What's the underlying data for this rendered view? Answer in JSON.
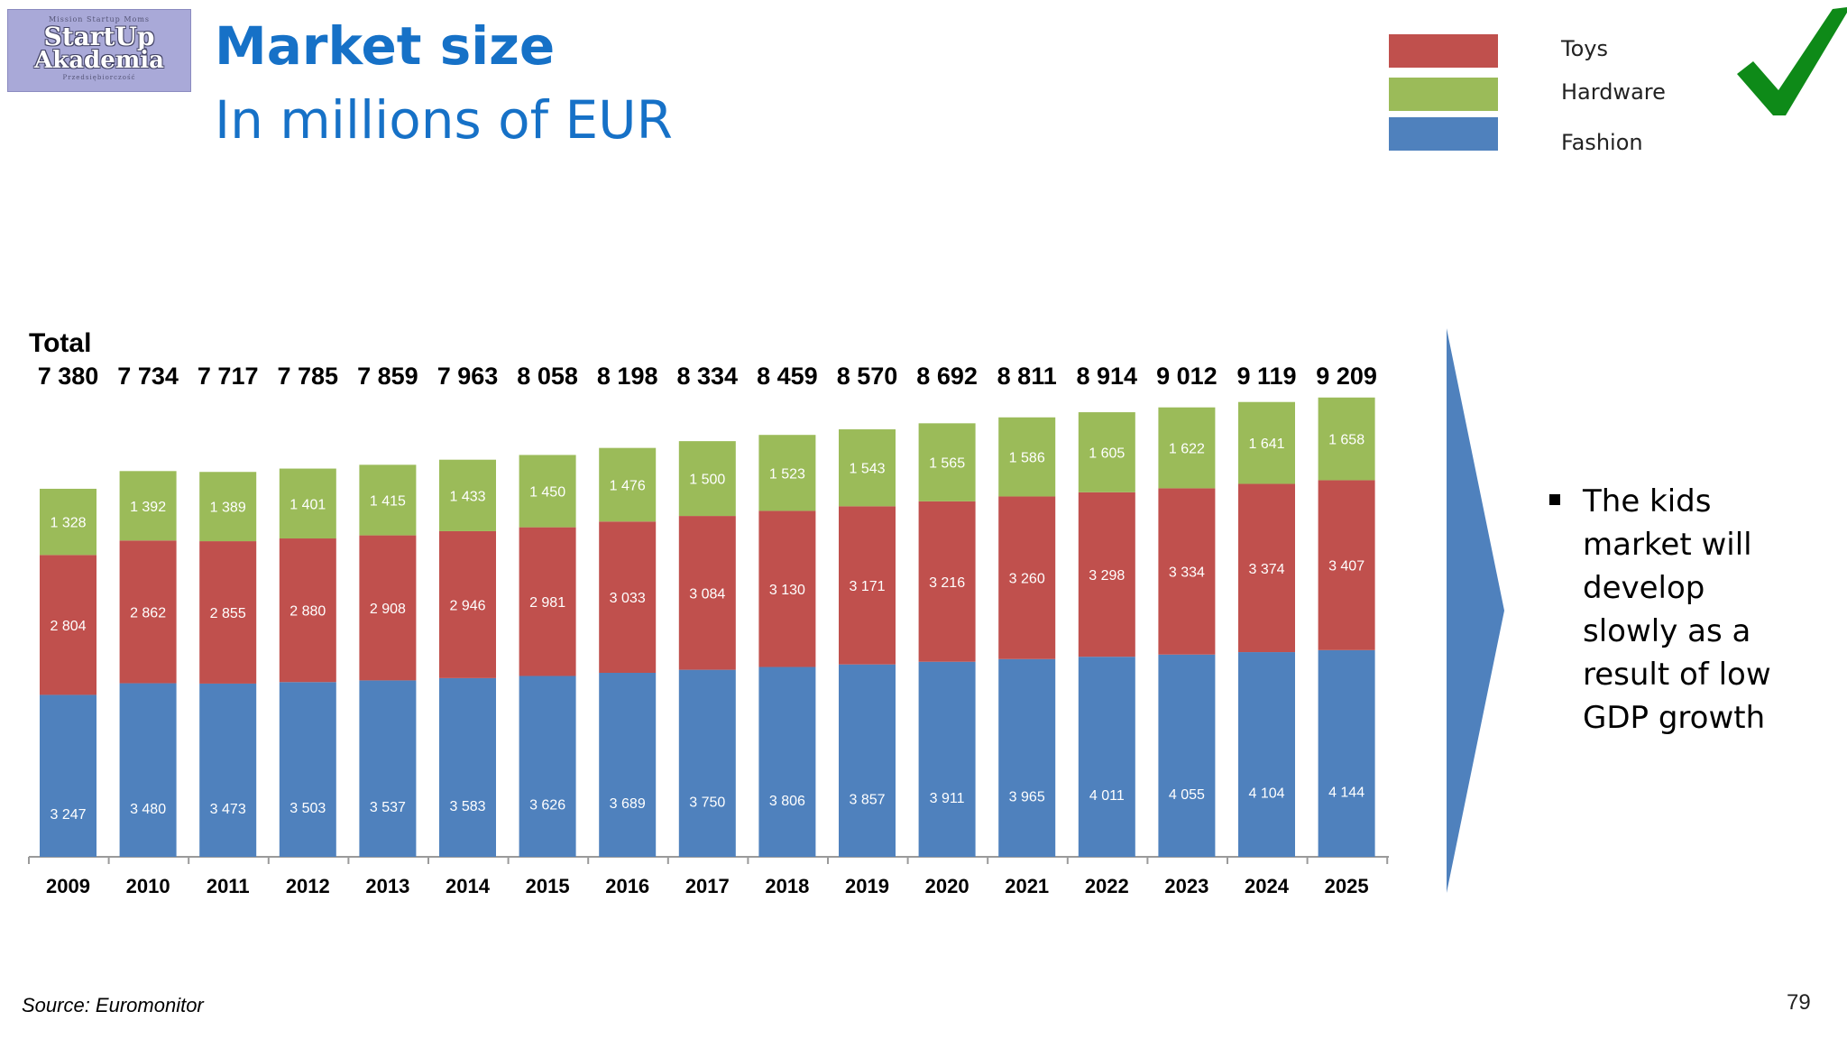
{
  "logo": {
    "top_text": "Mission Startup Moms",
    "line1": "StartUp",
    "line2": "Akademia",
    "bottom_text": "Przedsiębiorczość"
  },
  "header": {
    "title": "Market size",
    "subtitle": "In millions of EUR"
  },
  "legend": [
    {
      "label": "Toys",
      "color": "#c0504d"
    },
    {
      "label": "Hardware",
      "color": "#9bbb59"
    },
    {
      "label": "Fashion",
      "color": "#4f81bd"
    }
  ],
  "checkmark_icon": "check-icon",
  "chart_data": {
    "type": "bar",
    "stacked": true,
    "categories": [
      "2009",
      "2010",
      "2011",
      "2012",
      "2013",
      "2014",
      "2015",
      "2016",
      "2017",
      "2018",
      "2019",
      "2020",
      "2021",
      "2022",
      "2023",
      "2024",
      "2025"
    ],
    "series": [
      {
        "name": "Fashion",
        "color": "#4f81bd",
        "values": [
          3247,
          3480,
          3473,
          3503,
          3537,
          3583,
          3626,
          3689,
          3750,
          3806,
          3857,
          3911,
          3965,
          4011,
          4055,
          4104,
          4144
        ]
      },
      {
        "name": "Toys",
        "color": "#c0504d",
        "values": [
          2804,
          2862,
          2855,
          2880,
          2908,
          2946,
          2981,
          3033,
          3084,
          3130,
          3171,
          3216,
          3260,
          3298,
          3334,
          3374,
          3407
        ]
      },
      {
        "name": "Hardware",
        "color": "#9bbb59",
        "values": [
          1328,
          1392,
          1389,
          1401,
          1415,
          1433,
          1450,
          1476,
          1500,
          1523,
          1543,
          1565,
          1586,
          1605,
          1622,
          1641,
          1658
        ]
      }
    ],
    "total_heading": "Total",
    "totals_labels": [
      "7 380",
      "7 734",
      "7 717",
      "7 785",
      "7 859",
      "7 963",
      "8 058",
      "8 198",
      "8 334",
      "8 459",
      "8 570",
      "8 692",
      "8 811",
      "8 914",
      "9 012",
      "9 119",
      "9 209"
    ],
    "value_labels": {
      "Fashion": [
        "3 247",
        "3 480",
        "3 473",
        "3 503",
        "3 537",
        "3 583",
        "3 626",
        "3 689",
        "3 750",
        "3 806",
        "3 857",
        "3 911",
        "3 965",
        "4 011",
        "4 055",
        "4 104",
        "4 144"
      ],
      "Toys": [
        "2 804",
        "2 862",
        "2 855",
        "2 880",
        "2 908",
        "2 946",
        "2 981",
        "3 033",
        "3 084",
        "3 130",
        "3 171",
        "3 216",
        "3 260",
        "3 298",
        "3 334",
        "3 374",
        "3 407"
      ],
      "Hardware": [
        "1 328",
        "1 392",
        "1 389",
        "1 401",
        "1 415",
        "1 433",
        "1 450",
        "1 476",
        "1 500",
        "1 523",
        "1 543",
        "1 565",
        "1 586",
        "1 605",
        "1 622",
        "1 641",
        "1 658"
      ]
    },
    "ylim": [
      0,
      10000
    ],
    "grid": false
  },
  "bullet": {
    "text": "The kids market will develop slowly as a result of low GDP growth"
  },
  "footer": {
    "source": "Source: Euromonitor",
    "page_number": "79"
  }
}
